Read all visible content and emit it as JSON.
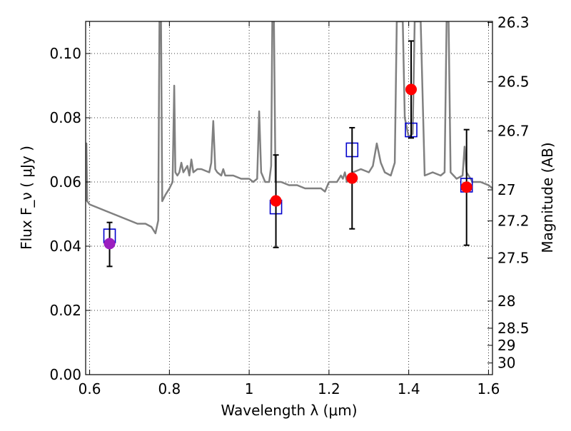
{
  "chart_data": {
    "type": "scatter",
    "xlabel": "Wavelength  λ (μm)",
    "ylabel": "Flux  F_ν  ( μJy )",
    "y2label": "Magnitude (AB)",
    "xlim": [
      0.59,
      1.61
    ],
    "ylim": [
      0.0,
      0.11
    ],
    "grid": true,
    "x_ticks": [
      {
        "value": 0.6,
        "label": "0.6"
      },
      {
        "value": 0.8,
        "label": "0.8"
      },
      {
        "value": 1.0,
        "label": "1"
      },
      {
        "value": 1.2,
        "label": "1.2"
      },
      {
        "value": 1.4,
        "label": "1.4"
      },
      {
        "value": 1.6,
        "label": "1.6"
      }
    ],
    "y_ticks": [
      {
        "value": 0.0,
        "label": "0.00"
      },
      {
        "value": 0.02,
        "label": "0.02"
      },
      {
        "value": 0.04,
        "label": "0.04"
      },
      {
        "value": 0.06,
        "label": "0.06"
      },
      {
        "value": 0.08,
        "label": "0.08"
      },
      {
        "value": 0.1,
        "label": "0.10"
      }
    ],
    "y2_ticks": [
      {
        "label": "26.3",
        "mag": 26.3
      },
      {
        "label": "26.5",
        "mag": 26.5
      },
      {
        "label": "26.7",
        "mag": 26.7
      },
      {
        "label": "27",
        "mag": 27.0
      },
      {
        "label": "27.2",
        "mag": 27.2
      },
      {
        "label": "27.5",
        "mag": 27.5
      },
      {
        "label": "28",
        "mag": 28.0
      },
      {
        "label": "28.5",
        "mag": 28.5
      },
      {
        "label": "29",
        "mag": 29.0
      },
      {
        "label": "30",
        "mag": 30.0
      }
    ],
    "series": [
      {
        "type": "line",
        "color": "#808080",
        "points": [
          [
            0.59,
            0.054
          ],
          [
            0.592,
            0.072
          ],
          [
            0.594,
            0.054
          ],
          [
            0.6,
            0.053
          ],
          [
            0.62,
            0.052
          ],
          [
            0.64,
            0.051
          ],
          [
            0.66,
            0.05
          ],
          [
            0.68,
            0.049
          ],
          [
            0.7,
            0.048
          ],
          [
            0.72,
            0.047
          ],
          [
            0.74,
            0.047
          ],
          [
            0.755,
            0.046
          ],
          [
            0.765,
            0.044
          ],
          [
            0.772,
            0.048
          ],
          [
            0.775,
            0.11
          ],
          [
            0.779,
            0.11
          ],
          [
            0.782,
            0.054
          ],
          [
            0.79,
            0.056
          ],
          [
            0.8,
            0.058
          ],
          [
            0.808,
            0.06
          ],
          [
            0.812,
            0.09
          ],
          [
            0.815,
            0.063
          ],
          [
            0.82,
            0.062
          ],
          [
            0.825,
            0.063
          ],
          [
            0.83,
            0.066
          ],
          [
            0.835,
            0.063
          ],
          [
            0.845,
            0.065
          ],
          [
            0.85,
            0.062
          ],
          [
            0.855,
            0.067
          ],
          [
            0.86,
            0.063
          ],
          [
            0.87,
            0.064
          ],
          [
            0.88,
            0.064
          ],
          [
            0.9,
            0.063
          ],
          [
            0.905,
            0.066
          ],
          [
            0.91,
            0.079
          ],
          [
            0.915,
            0.064
          ],
          [
            0.92,
            0.063
          ],
          [
            0.93,
            0.062
          ],
          [
            0.935,
            0.064
          ],
          [
            0.94,
            0.062
          ],
          [
            0.96,
            0.062
          ],
          [
            0.98,
            0.061
          ],
          [
            1.0,
            0.061
          ],
          [
            1.01,
            0.06
          ],
          [
            1.02,
            0.061
          ],
          [
            1.025,
            0.082
          ],
          [
            1.03,
            0.063
          ],
          [
            1.04,
            0.06
          ],
          [
            1.05,
            0.06
          ],
          [
            1.055,
            0.065
          ],
          [
            1.058,
            0.11
          ],
          [
            1.062,
            0.11
          ],
          [
            1.066,
            0.06
          ],
          [
            1.08,
            0.06
          ],
          [
            1.1,
            0.059
          ],
          [
            1.12,
            0.059
          ],
          [
            1.14,
            0.058
          ],
          [
            1.16,
            0.058
          ],
          [
            1.18,
            0.058
          ],
          [
            1.19,
            0.057
          ],
          [
            1.2,
            0.06
          ],
          [
            1.22,
            0.06
          ],
          [
            1.23,
            0.062
          ],
          [
            1.235,
            0.061
          ],
          [
            1.24,
            0.063
          ],
          [
            1.245,
            0.06
          ],
          [
            1.26,
            0.063
          ],
          [
            1.28,
            0.064
          ],
          [
            1.3,
            0.063
          ],
          [
            1.31,
            0.065
          ],
          [
            1.32,
            0.072
          ],
          [
            1.33,
            0.066
          ],
          [
            1.34,
            0.063
          ],
          [
            1.355,
            0.062
          ],
          [
            1.365,
            0.066
          ],
          [
            1.37,
            0.11
          ],
          [
            1.385,
            0.11
          ],
          [
            1.39,
            0.08
          ],
          [
            1.4,
            0.074
          ],
          [
            1.41,
            0.075
          ],
          [
            1.415,
            0.11
          ],
          [
            1.43,
            0.11
          ],
          [
            1.44,
            0.062
          ],
          [
            1.46,
            0.063
          ],
          [
            1.48,
            0.062
          ],
          [
            1.49,
            0.063
          ],
          [
            1.495,
            0.11
          ],
          [
            1.5,
            0.11
          ],
          [
            1.505,
            0.063
          ],
          [
            1.52,
            0.061
          ],
          [
            1.535,
            0.062
          ],
          [
            1.54,
            0.071
          ],
          [
            1.545,
            0.063
          ],
          [
            1.56,
            0.06
          ],
          [
            1.58,
            0.06
          ],
          [
            1.6,
            0.059
          ],
          [
            1.61,
            0.058
          ]
        ]
      },
      {
        "type": "boxes",
        "color": "#0000cc",
        "points": [
          [
            0.65,
            0.0432
          ],
          [
            1.067,
            0.0522
          ],
          [
            1.258,
            0.07
          ],
          [
            1.406,
            0.0762
          ],
          [
            1.545,
            0.059
          ]
        ]
      },
      {
        "type": "points-with-errors",
        "points": [
          {
            "x": 0.65,
            "y": 0.0408,
            "err_low": 0.0337,
            "err_high": 0.0474,
            "color": "#9b1fbf"
          },
          {
            "x": 1.067,
            "y": 0.0541,
            "err_low": 0.0396,
            "err_high": 0.0684,
            "color": "#ff0000"
          },
          {
            "x": 1.258,
            "y": 0.0612,
            "err_low": 0.0454,
            "err_high": 0.0769,
            "color": "#ff0000"
          },
          {
            "x": 1.406,
            "y": 0.0888,
            "err_low": 0.0737,
            "err_high": 0.1039,
            "color": "#ff0000"
          },
          {
            "x": 1.545,
            "y": 0.0584,
            "err_low": 0.0403,
            "err_high": 0.0763,
            "color": "#ff0000"
          }
        ]
      }
    ]
  }
}
